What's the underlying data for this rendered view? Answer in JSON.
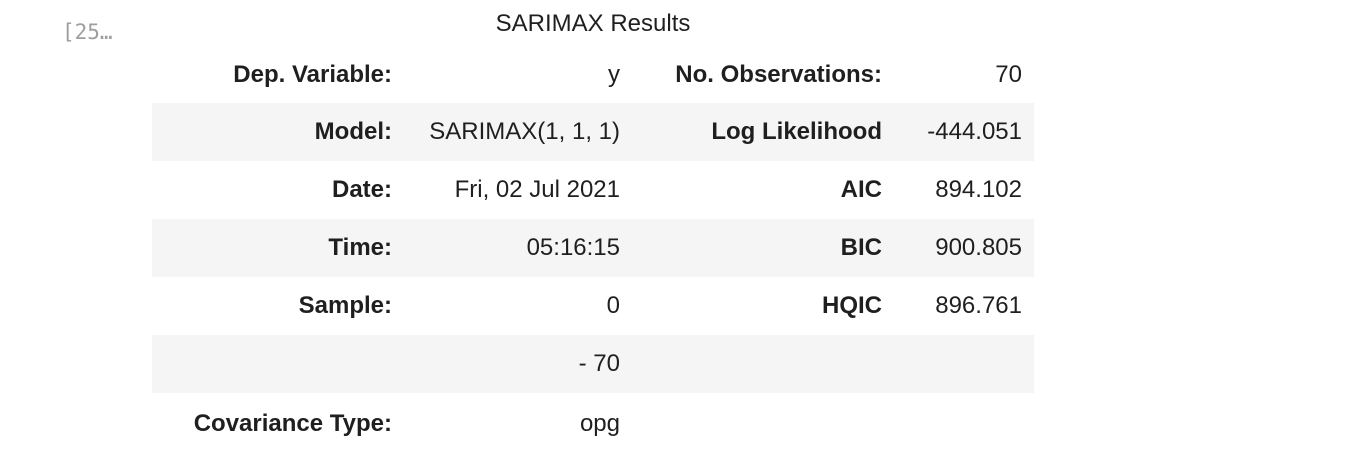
{
  "cell": {
    "prompt": "[25…"
  },
  "results": {
    "caption": "SARIMAX Results",
    "rows": [
      {
        "label1": "Dep. Variable:",
        "value1": "y",
        "label2": "No. Observations:",
        "value2": "70"
      },
      {
        "label1": "Model:",
        "value1": "SARIMAX(1, 1, 1)",
        "label2": "Log Likelihood",
        "value2": "-444.051"
      },
      {
        "label1": "Date:",
        "value1": "Fri, 02 Jul 2021",
        "label2": "AIC",
        "value2": "894.102"
      },
      {
        "label1": "Time:",
        "value1": "05:16:15",
        "label2": "BIC",
        "value2": "900.805"
      },
      {
        "label1": "Sample:",
        "value1": "0",
        "label2": "HQIC",
        "value2": "896.761"
      },
      {
        "label1": "",
        "value1": "- 70",
        "label2": "",
        "value2": ""
      },
      {
        "label1": "Covariance Type:",
        "value1": "opg",
        "label2": "",
        "value2": ""
      }
    ]
  },
  "colors": {
    "stripe": "#f5f5f5",
    "text": "#1f1f1f",
    "prompt": "#9e9e9e"
  }
}
